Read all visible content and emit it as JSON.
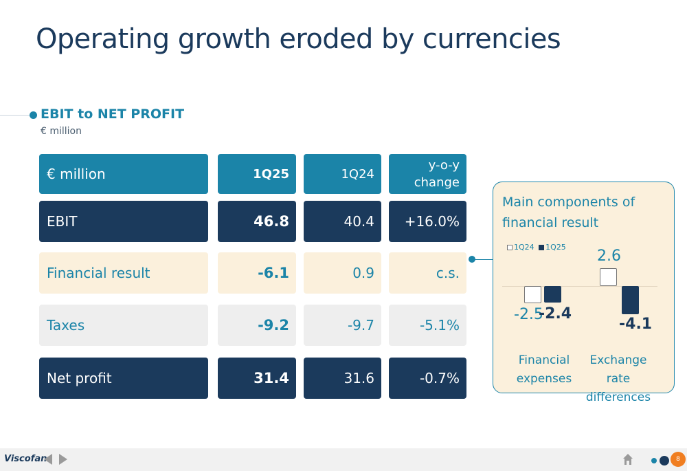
{
  "title": "Operating growth eroded by currencies",
  "section": {
    "title": "EBIT to NET PROFIT",
    "unit": "€ million"
  },
  "table": {
    "header": {
      "label": "€ million",
      "c1": "1Q25",
      "c2": "1Q24",
      "c3_line1": "y-o-y",
      "c3_line2": "change"
    },
    "rows": [
      {
        "label": "EBIT",
        "q125": "46.8",
        "q124": "40.4",
        "change": "+16.0%"
      },
      {
        "label": "Financial result",
        "q125": "-6.1",
        "q124": "0.9",
        "change": "c.s."
      },
      {
        "label": "Taxes",
        "q125": "-9.2",
        "q124": "-9.7",
        "change": "-5.1%"
      },
      {
        "label": "Net profit",
        "q125": "31.4",
        "q124": "31.6",
        "change": "-0.7%"
      }
    ]
  },
  "chart_data": {
    "type": "bar",
    "title": "Main components of financial result",
    "categories": [
      "Financial expenses",
      "Exchange rate differences"
    ],
    "series": [
      {
        "name": "1Q24",
        "values": [
          -2.5,
          2.6
        ]
      },
      {
        "name": "1Q25",
        "values": [
          -2.4,
          -4.1
        ]
      }
    ],
    "value_labels": {
      "1Q24": [
        "-2.5",
        "2.6"
      ],
      "1Q25": [
        "-2.4",
        "-4.1"
      ]
    },
    "legend": [
      "1Q24",
      "1Q25"
    ],
    "legend_position": "top-left",
    "grid": false,
    "colors": {
      "1Q24": "#ffffff",
      "1Q25": "#1b3a5c"
    }
  },
  "footer": {
    "logo": "Viscofan",
    "page": "8"
  },
  "colors": {
    "teal": "#1b84a8",
    "navy": "#1b3a5c",
    "cream": "#fbf0dc",
    "grey": "#eeeeee",
    "orange": "#f07e21"
  }
}
